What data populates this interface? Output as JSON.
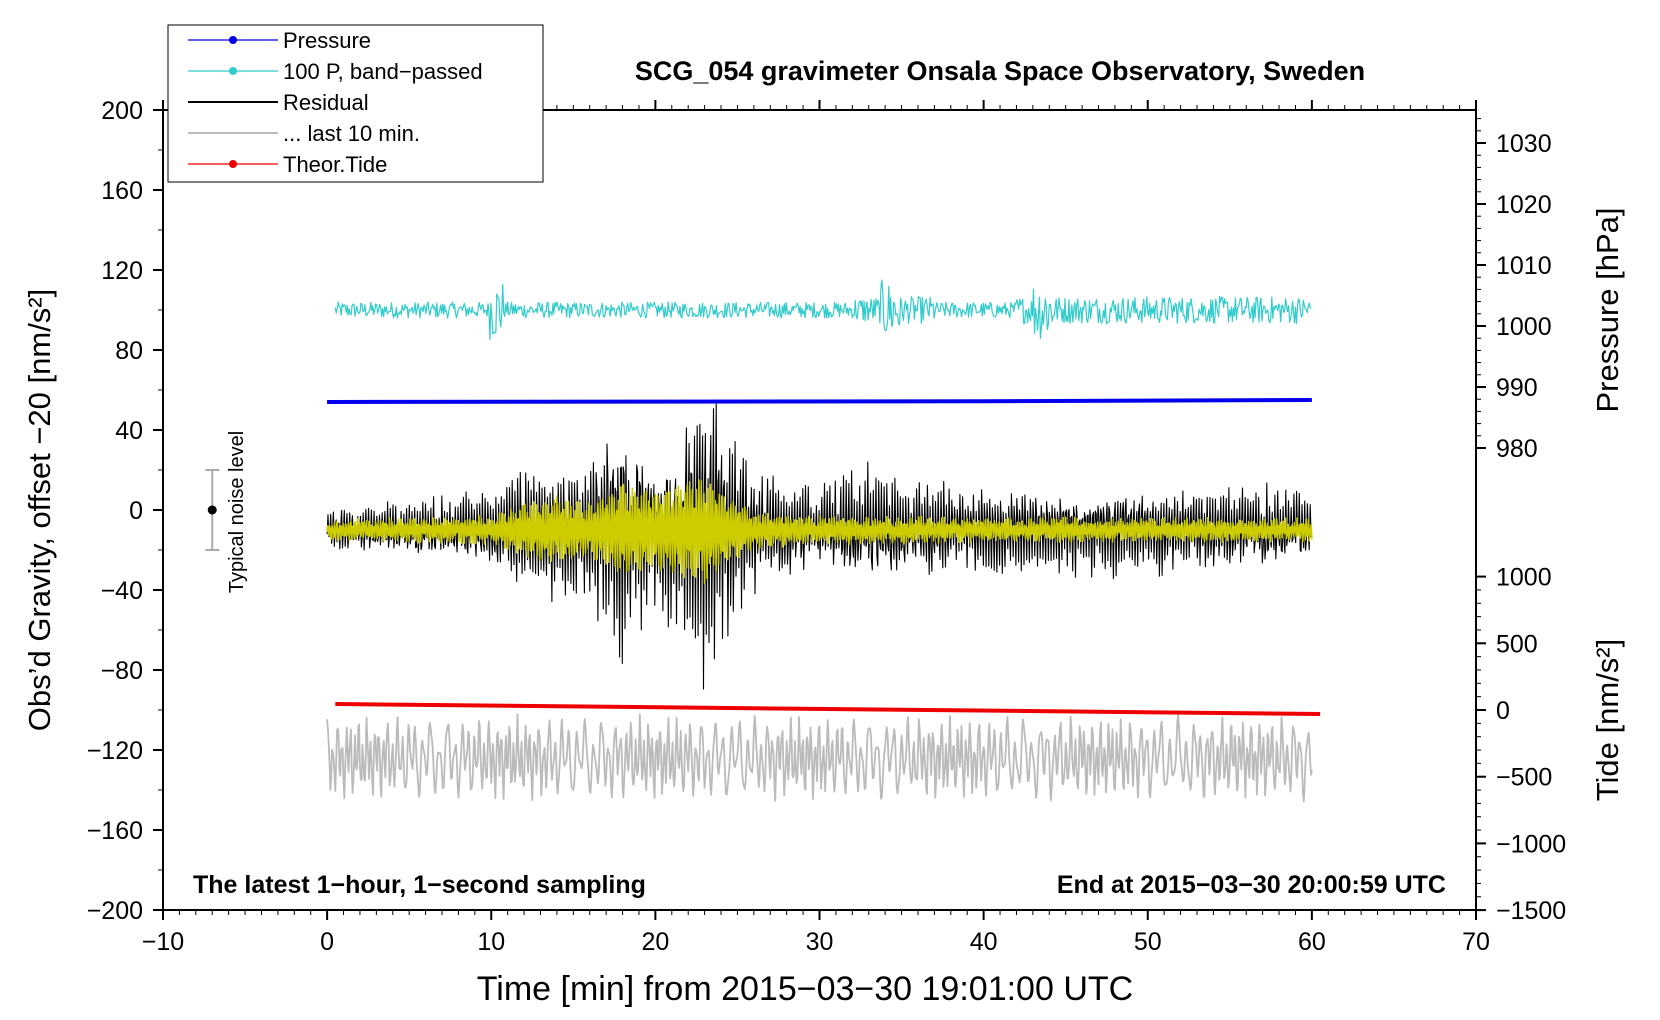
{
  "chart_data": {
    "type": "line",
    "title": "SCG_054 gravimeter Onsala Space Observatory, Sweden",
    "xlabel": "Time [min] from 2015−03−30 19:01:00 UTC",
    "ylabel_left": "Obs’d Gravity, offset −20 [nm/s²]",
    "ylabel_right_pressure": "Pressure [hPa]",
    "ylabel_right_tide": "Tide [nm/s²]",
    "xlim": [
      -10,
      70
    ],
    "ylim": [
      -200,
      200
    ],
    "x_ticks": [
      -10,
      0,
      10,
      20,
      30,
      40,
      50,
      60,
      70
    ],
    "x_tick_labels": [
      "−10",
      "0",
      "10",
      "20",
      "30",
      "40",
      "50",
      "60",
      "70"
    ],
    "y_ticks": [
      -200,
      -160,
      -120,
      -80,
      -40,
      0,
      40,
      80,
      120,
      160,
      200
    ],
    "y_tick_labels": [
      "−200",
      "−160",
      "−120",
      "−80",
      "−40",
      "0",
      "40",
      "80",
      "120",
      "160",
      "200"
    ],
    "pressure_axis": {
      "ticks": [
        980,
        990,
        1000,
        1010,
        1020,
        1030
      ],
      "tick_labels": [
        "980",
        "990",
        "1000",
        "1010",
        "1020",
        "1030"
      ],
      "ref_value": 1000,
      "ref_gravity": 92,
      "gravity_per_unit": 3.05
    },
    "tide_axis": {
      "ticks": [
        -1500,
        -1000,
        -500,
        0,
        500,
        1000
      ],
      "tick_labels": [
        "−1500",
        "−1000",
        "−500",
        "0",
        "500",
        "1000"
      ],
      "ref_value": 0,
      "ref_gravity": -100,
      "gravity_per_unit": 0.0667
    },
    "legend": {
      "placement": "top-left",
      "entries": [
        {
          "label": "Pressure",
          "color": "#0000ee",
          "marker": true
        },
        {
          "label": "100 P, band−passed",
          "color": "#33cccc",
          "marker": true
        },
        {
          "label": "Residual",
          "color": "#000000",
          "marker": false
        },
        {
          "label": "... last 10 min.",
          "color": "#bbbbbb",
          "marker": false
        },
        {
          "label": "Theor.Tide",
          "color": "#ee0000",
          "marker": true
        }
      ]
    },
    "series": [
      {
        "name": "Pressure",
        "color": "#0000ee",
        "x_range": [
          0,
          60
        ],
        "value_start": 54,
        "value_end": 55,
        "unit_note": "approx. 988.5 hPa"
      },
      {
        "name": "100 P, band-passed",
        "color": "#33cccc",
        "x_range": [
          0.5,
          60
        ],
        "center": 100,
        "typical_amplitude": 4,
        "peak_amplitude": 15
      },
      {
        "name": "Residual",
        "color": "#000000",
        "x_range": [
          0,
          60
        ],
        "center": -10,
        "envelope_x": [
          0,
          5,
          10,
          12,
          14,
          16,
          17,
          18,
          19,
          20,
          21,
          22,
          23,
          24,
          25,
          26,
          28,
          30,
          33,
          35,
          40,
          45,
          50,
          55,
          60
        ],
        "envelope_amp": [
          10,
          14,
          18,
          30,
          32,
          40,
          50,
          62,
          48,
          38,
          45,
          62,
          72,
          70,
          48,
          30,
          24,
          20,
          30,
          24,
          20,
          20,
          20,
          20,
          20
        ]
      },
      {
        "name": "Residual filtered",
        "color": "#cccc00",
        "x_range": [
          0,
          60
        ],
        "center": -10,
        "envelope_x": [
          0,
          10,
          12,
          14,
          16,
          18,
          20,
          22,
          23,
          24,
          26,
          30,
          40,
          60
        ],
        "envelope_amp": [
          4,
          6,
          12,
          16,
          12,
          22,
          18,
          24,
          26,
          18,
          8,
          6,
          5,
          5
        ]
      },
      {
        "name": "... last 10 min.",
        "color": "#bbbbbb",
        "x_range": [
          0,
          60
        ],
        "center": -124,
        "amplitude": 22
      },
      {
        "name": "Theor.Tide",
        "color": "#ee0000",
        "x_range": [
          0.5,
          60.5
        ],
        "value_start": -97,
        "value_end": -102,
        "unit_note": "approx. 50 to -25 nm/s²"
      }
    ],
    "noise_bar": {
      "label": "Typical noise level",
      "x": -7,
      "y": 0,
      "half_range": 20
    },
    "annotations": {
      "bottom_left": "The latest 1−hour, 1−second sampling",
      "bottom_right": "End at 2015−03−30 20:00:59 UTC"
    },
    "grid": false
  }
}
